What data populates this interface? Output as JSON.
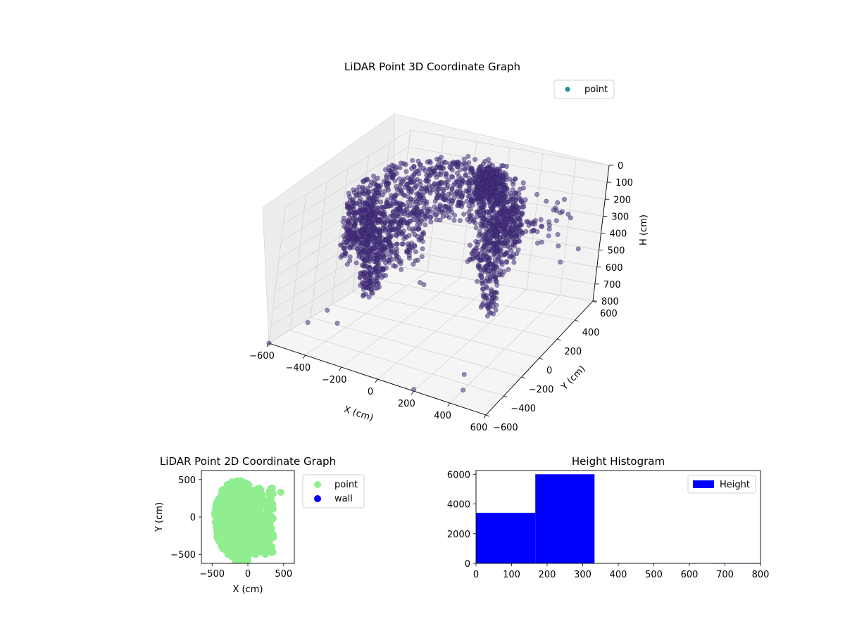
{
  "colors": {
    "point_3d": "#46317e",
    "point_3d_legend": "#21918c",
    "point_2d": "#90ee90",
    "wall_2d": "#0000ff",
    "hist": "#0000ff",
    "pane": "#f2f2f2",
    "grid": "#d0d0d0"
  },
  "chart_data": [
    {
      "type": "scatter",
      "title": "LiDAR Point 3D Coordinate Graph",
      "xlabel": "X (cm)",
      "ylabel": "Y (cm)",
      "zlabel": "H (cm)",
      "xlim": [
        -600,
        600
      ],
      "ylim": [
        -600,
        600
      ],
      "zlim": [
        800,
        0
      ],
      "x_ticks": [
        "−600",
        "−400",
        "−200",
        "0",
        "200",
        "400",
        "600"
      ],
      "y_ticks": [
        "−600",
        "−400",
        "−200",
        "0",
        "200",
        "400",
        "600"
      ],
      "z_ticks": [
        "0",
        "100",
        "200",
        "300",
        "400",
        "500",
        "600",
        "700",
        "800"
      ],
      "grid": true,
      "legend": {
        "position": "top-right",
        "entries": [
          "point"
        ]
      },
      "series": [
        {
          "name": "point",
          "description_points": "ring of dense points forming a room-shaped shell around the origin at heights 0-350 cm, plus sparse outliers near the floor",
          "sample_points": [
            {
              "x": -560,
              "y": -300,
              "h": 780
            },
            {
              "x": -540,
              "y": -150,
              "h": 760
            },
            {
              "x": -300,
              "y": 350,
              "h": 740
            },
            {
              "x": -250,
              "y": 300,
              "h": 720
            },
            {
              "x": 200,
              "y": -600,
              "h": 790
            },
            {
              "x": 420,
              "y": -500,
              "h": 770
            },
            {
              "x": 350,
              "y": -350,
              "h": 780
            },
            {
              "x": 520,
              "y": 300,
              "h": 420
            },
            {
              "x": 560,
              "y": 420,
              "h": 400
            },
            {
              "x": 450,
              "y": 480,
              "h": 250
            },
            {
              "x": -600,
              "y": -600,
              "h": 800
            },
            {
              "x": -450,
              "y": -200,
              "h": 790
            }
          ]
        }
      ]
    },
    {
      "type": "scatter",
      "title": "LiDAR Point 2D Coordinate Graph",
      "xlabel": "X (cm)",
      "ylabel": "Y (cm)",
      "xlim": [
        -650,
        650
      ],
      "ylim": [
        -620,
        620
      ],
      "x_ticks": [
        -500,
        0,
        500
      ],
      "y_ticks": [
        -500,
        0,
        500
      ],
      "legend": {
        "position": "outside-right",
        "entries": [
          "point",
          "wall"
        ]
      },
      "series": [
        {
          "name": "point",
          "shape": "dense cluster roughly spanning x −500..450, y −600..500"
        },
        {
          "name": "wall",
          "points": []
        }
      ]
    },
    {
      "type": "bar",
      "title": "Height Histogram",
      "xlim": [
        0,
        800
      ],
      "ylim": [
        0,
        6250
      ],
      "x_ticks": [
        0,
        100,
        200,
        300,
        400,
        500,
        600,
        700,
        800
      ],
      "y_ticks": [
        0,
        2000,
        4000,
        6000
      ],
      "legend": {
        "position": "top-right",
        "entries": [
          "Height"
        ]
      },
      "bins": [
        {
          "from": 0,
          "to": 166.7,
          "count": 3400
        },
        {
          "from": 166.7,
          "to": 333.3,
          "count": 6000
        },
        {
          "from": 333.3,
          "to": 500,
          "count": 0
        },
        {
          "from": 500,
          "to": 666.7,
          "count": 0
        },
        {
          "from": 666.7,
          "to": 833.3,
          "count": 30
        }
      ]
    }
  ]
}
